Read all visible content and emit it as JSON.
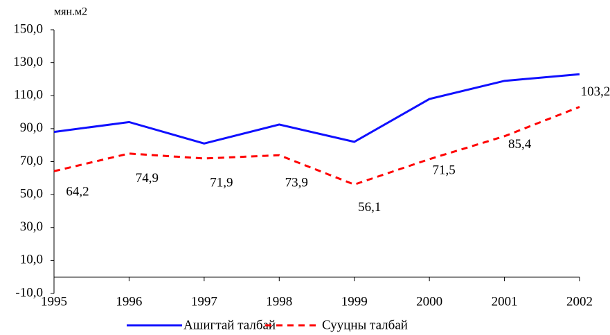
{
  "chart_data": {
    "type": "line",
    "y_label": "мян.м2",
    "categories": [
      "1995",
      "1996",
      "1997",
      "1998",
      "1999",
      "2000",
      "2001",
      "2002"
    ],
    "series": [
      {
        "name": "Ашигтай талбай",
        "color": "#1010ff",
        "dash": false,
        "values": [
          88,
          94,
          81,
          92.5,
          82,
          108,
          119,
          123
        ]
      },
      {
        "name": "Сууцны талбай",
        "color": "#ff0000",
        "dash": true,
        "values": [
          64.2,
          74.9,
          71.9,
          73.9,
          56.1,
          71.5,
          85.4,
          103.2
        ],
        "value_labels": [
          "64,2",
          "74,9",
          "71,9",
          "73,9",
          "56,1",
          "71,5",
          "85,4",
          "103,2"
        ]
      }
    ],
    "ylim": [
      -10,
      150
    ],
    "yticks": [
      {
        "value": -10,
        "label": "-10,0"
      },
      {
        "value": 10,
        "label": "10,0"
      },
      {
        "value": 30,
        "label": "30,0"
      },
      {
        "value": 50,
        "label": "50,0"
      },
      {
        "value": 70,
        "label": "70,0"
      },
      {
        "value": 90,
        "label": "90,0"
      },
      {
        "value": 110,
        "label": "110,0"
      },
      {
        "value": 130,
        "label": "130,0"
      },
      {
        "value": 150,
        "label": "150,0"
      }
    ],
    "grid": false
  }
}
